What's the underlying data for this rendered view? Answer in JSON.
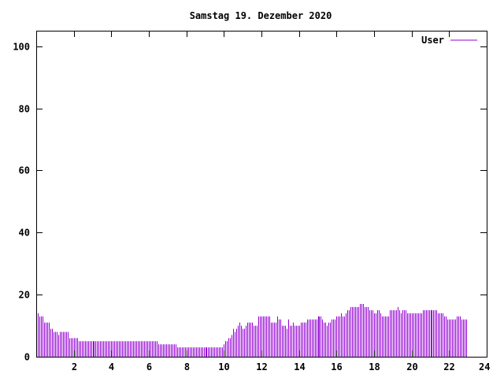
{
  "chart_data": {
    "type": "bar",
    "title": "Samstag 19. Dezember 2020",
    "xlabel": "",
    "ylabel": "",
    "xlim": [
      0,
      24
    ],
    "ylim": [
      0,
      105
    ],
    "x_ticks": [
      2,
      4,
      6,
      8,
      10,
      12,
      14,
      16,
      18,
      20,
      22,
      24
    ],
    "y_ticks": [
      0,
      20,
      40,
      60,
      80,
      100
    ],
    "legend": {
      "position": "top-right"
    },
    "series": [
      {
        "name": "User",
        "color": "#9400d3",
        "interval_minutes": 5,
        "values": [
          16,
          14,
          13,
          13,
          13,
          11,
          11,
          11,
          11,
          9,
          9,
          8,
          8,
          8,
          7,
          8,
          8,
          8,
          8,
          8,
          8,
          6,
          6,
          6,
          6,
          6,
          6,
          5,
          5,
          5,
          5,
          5,
          5,
          5,
          5,
          5,
          5,
          5,
          5,
          5,
          5,
          5,
          5,
          5,
          5,
          5,
          5,
          5,
          5,
          5,
          5,
          5,
          5,
          5,
          5,
          5,
          5,
          5,
          5,
          5,
          5,
          5,
          5,
          5,
          5,
          5,
          5,
          5,
          5,
          5,
          5,
          5,
          5,
          5,
          5,
          5,
          5,
          5,
          4,
          4,
          4,
          4,
          4,
          4,
          4,
          4,
          4,
          4,
          4,
          4,
          3,
          3,
          3,
          3,
          3,
          3,
          3,
          3,
          3,
          3,
          3,
          3,
          3,
          3,
          3,
          3,
          3,
          3,
          3,
          3,
          3,
          3,
          3,
          3,
          3,
          3,
          3,
          3,
          3,
          3,
          4,
          5,
          5,
          6,
          6,
          7,
          9,
          8,
          9,
          10,
          11,
          10,
          9,
          9,
          10,
          11,
          11,
          11,
          11,
          10,
          10,
          10,
          13,
          13,
          13,
          13,
          13,
          13,
          13,
          13,
          11,
          11,
          11,
          11,
          13,
          12,
          12,
          10,
          10,
          10,
          9,
          12,
          10,
          10,
          11,
          10,
          10,
          10,
          10,
          11,
          11,
          11,
          11,
          12,
          12,
          12,
          12,
          12,
          12,
          12,
          13,
          13,
          13,
          12,
          11,
          11,
          10,
          11,
          11,
          12,
          12,
          12,
          13,
          13,
          13,
          14,
          13,
          13,
          14,
          15,
          15,
          16,
          16,
          16,
          16,
          16,
          16,
          17,
          17,
          17,
          16,
          16,
          16,
          15,
          15,
          15,
          14,
          14,
          15,
          15,
          14,
          13,
          13,
          13,
          13,
          13,
          15,
          15,
          15,
          15,
          15,
          16,
          15,
          14,
          15,
          15,
          15,
          14,
          14,
          14,
          14,
          14,
          14,
          14,
          14,
          14,
          14,
          15,
          15,
          15,
          15,
          15,
          15,
          15,
          15,
          15,
          15,
          14,
          14,
          14,
          14,
          13,
          13,
          12,
          12,
          12,
          12,
          12,
          12,
          13,
          13,
          13,
          12,
          12,
          12,
          12
        ]
      }
    ]
  }
}
